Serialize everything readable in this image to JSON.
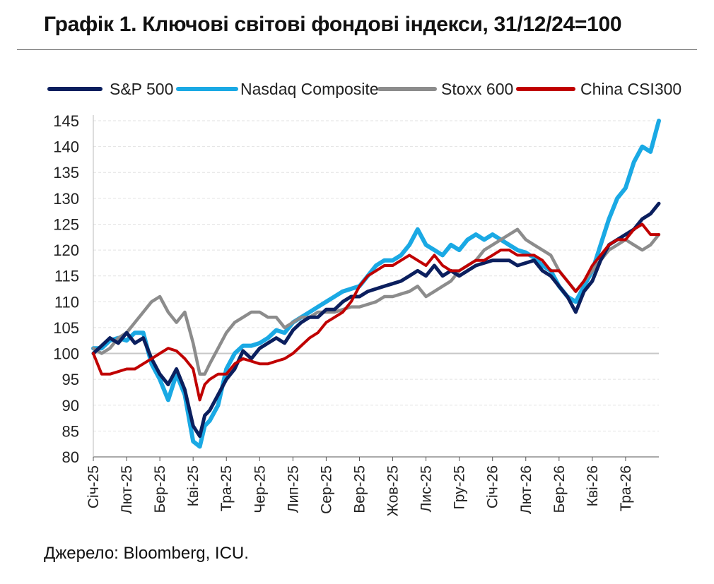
{
  "title": "Графік 1. Ключові світові фондові індекси, 31/12/24=100",
  "source": "Джерело: Bloomberg, ICU.",
  "chart_data": {
    "type": "line",
    "title": "Графік 1. Ключові світові фондові індекси, 31/12/24=100",
    "xlabel": "",
    "ylabel": "",
    "ylim": [
      80,
      145
    ],
    "yticks": [
      80,
      85,
      90,
      95,
      100,
      105,
      110,
      115,
      120,
      125,
      130,
      135,
      140,
      145
    ],
    "xticks": [
      "Січ-25",
      "Лют-25",
      "Бер-25",
      "Кві-25",
      "Тра-25",
      "Чер-25",
      "Лип-25",
      "Сер-25",
      "Вер-25",
      "Жов-25",
      "Лис-25",
      "Гру-25",
      "Січ-26",
      "Лют-26",
      "Бер-26",
      "Кві-26",
      "Тра-26"
    ],
    "x": [
      0,
      0.25,
      0.5,
      0.75,
      1,
      1.25,
      1.5,
      1.75,
      2,
      2.25,
      2.5,
      2.75,
      3,
      3.2,
      3.35,
      3.5,
      3.75,
      4,
      4.25,
      4.5,
      4.75,
      5,
      5.25,
      5.5,
      5.75,
      6,
      6.25,
      6.5,
      6.75,
      7,
      7.25,
      7.5,
      7.75,
      8,
      8.25,
      8.5,
      8.75,
      9,
      9.25,
      9.5,
      9.75,
      10,
      10.25,
      10.5,
      10.75,
      11,
      11.25,
      11.5,
      11.75,
      12,
      12.25,
      12.5,
      12.75,
      13,
      13.25,
      13.5,
      13.75,
      14,
      14.25,
      14.5,
      14.75,
      15,
      15.25,
      15.5,
      15.75,
      16,
      16.25,
      16.5,
      16.75,
      17
    ],
    "grid": true,
    "legend_position": "top",
    "series": [
      {
        "name": "S&P 500",
        "color": "#0b1f5e",
        "values": [
          100,
          101.5,
          103,
          102,
          104,
          102,
          103,
          99,
          96,
          94,
          97,
          93,
          86,
          84,
          88,
          89,
          92,
          95,
          97,
          100.5,
          99,
          101,
          102,
          103,
          102,
          104.5,
          106,
          107,
          107,
          108.5,
          108.5,
          110,
          111,
          111,
          112,
          112.5,
          113,
          113.5,
          114,
          115,
          116,
          115,
          117,
          115,
          116,
          115,
          116,
          117,
          117.5,
          118,
          118,
          118,
          117,
          117.5,
          118,
          116,
          115,
          113,
          111,
          108,
          112,
          114,
          118,
          121,
          122,
          123,
          124,
          126,
          127,
          129
        ]
      },
      {
        "name": "Nasdaq Composite",
        "color": "#1aa9e4",
        "values": [
          101,
          101,
          102.5,
          103,
          102.5,
          104,
          104,
          98,
          95,
          91,
          96,
          92,
          83,
          82,
          86,
          87,
          90,
          97,
          100,
          101.5,
          101.5,
          102,
          103,
          104.5,
          104,
          106,
          107,
          108,
          109,
          110,
          111,
          112,
          112.5,
          113,
          115,
          117,
          118,
          118,
          119,
          121,
          124,
          121,
          120,
          119,
          121,
          120,
          122,
          123,
          122,
          123,
          122,
          121,
          120,
          119.5,
          118.5,
          117,
          116,
          113,
          111,
          110,
          113,
          116,
          121,
          126,
          130,
          132,
          137,
          140,
          139,
          145
        ]
      },
      {
        "name": "Stoxx 600",
        "color": "#8c8c8c",
        "values": [
          101,
          100,
          101,
          103,
          104,
          106,
          108,
          110,
          111,
          108,
          106,
          108,
          102,
          96,
          96,
          98,
          101,
          104,
          106,
          107,
          108,
          108,
          107,
          107,
          105,
          106,
          107,
          107,
          108,
          108,
          108,
          108.5,
          109,
          109,
          109.5,
          110,
          111,
          111,
          111.5,
          112,
          113,
          111,
          112,
          113,
          114,
          116,
          117,
          118,
          120,
          121,
          122,
          123,
          124,
          122,
          121,
          120,
          119,
          116,
          114,
          112,
          114,
          116,
          118,
          120,
          121,
          122,
          121,
          120,
          121,
          123
        ]
      },
      {
        "name": "China CSI300",
        "color": "#c00000",
        "values": [
          100,
          96,
          96,
          96.5,
          97,
          97,
          98,
          99,
          100,
          101,
          100.5,
          99,
          97,
          91,
          94,
          95,
          96,
          96,
          98,
          99,
          98.5,
          98,
          98,
          98.5,
          99,
          100,
          101.5,
          103,
          104,
          106,
          107,
          108,
          110,
          113,
          115,
          116,
          117,
          117,
          118,
          119,
          118,
          117,
          119,
          117,
          116,
          116,
          117,
          118,
          118,
          119,
          120,
          120,
          119,
          119,
          119,
          118,
          116,
          116,
          114,
          112,
          114,
          117,
          119,
          121,
          122,
          122,
          124,
          125,
          123,
          123
        ]
      }
    ]
  }
}
